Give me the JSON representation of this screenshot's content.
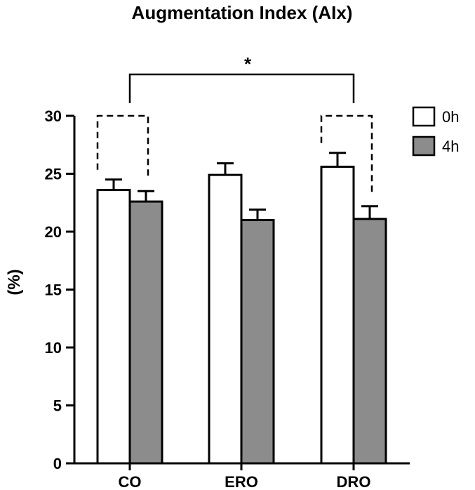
{
  "chart_data": {
    "type": "bar",
    "title": "Augmentation Index (AIx)",
    "ylabel": "(%)",
    "xlabel": "",
    "categories": [
      "CO",
      "ERO",
      "DRO"
    ],
    "series": [
      {
        "name": "0h",
        "values": [
          23.6,
          24.9,
          25.6
        ],
        "errors": [
          0.9,
          1.0,
          1.2
        ],
        "color": "#ffffff"
      },
      {
        "name": "4h",
        "values": [
          22.6,
          21.0,
          21.1
        ],
        "errors": [
          0.9,
          0.9,
          1.1
        ],
        "color": "#8c8c8c"
      }
    ],
    "ylim": [
      0,
      30
    ],
    "yticks": [
      0,
      5,
      10,
      15,
      20,
      25,
      30
    ],
    "legend_position": "top-right",
    "grid": false,
    "annotations": {
      "significance_bracket": {
        "from": "CO",
        "to": "DRO",
        "label": "*",
        "style": "solid"
      },
      "paired_brackets": [
        {
          "category": "CO",
          "style": "dashed"
        },
        {
          "category": "DRO",
          "style": "dashed"
        }
      ]
    }
  }
}
